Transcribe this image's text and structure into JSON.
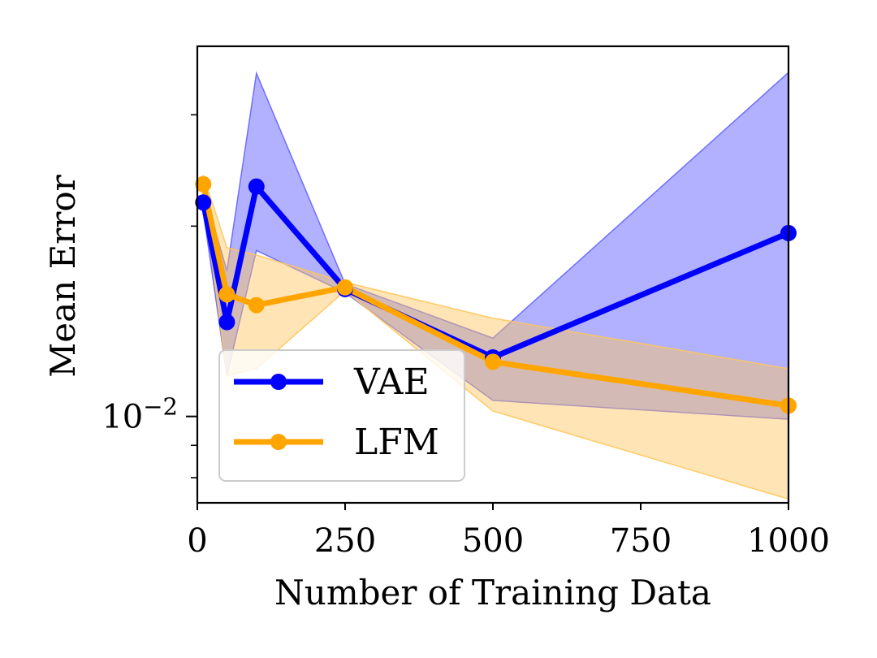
{
  "chart_data": {
    "type": "line",
    "title": "",
    "xlabel": "Number of Training Data",
    "ylabel": "Mean Error",
    "xlim": [
      0,
      1000
    ],
    "ylim": [
      0.0073,
      0.0385
    ],
    "yscale": "log",
    "x_ticks": [
      {
        "value": 0,
        "label": "0"
      },
      {
        "value": 250,
        "label": "250"
      },
      {
        "value": 500,
        "label": "500"
      },
      {
        "value": 750,
        "label": "750"
      },
      {
        "value": 1000,
        "label": "1000"
      }
    ],
    "y_major_tick": {
      "value": 0.01,
      "base": "10",
      "exponent": "−2"
    },
    "y_minor_ticks": [
      0.008,
      0.009,
      0.02,
      0.03
    ],
    "legend_position": "lower-left",
    "x": [
      10,
      50,
      100,
      250,
      500,
      1000
    ],
    "series": [
      {
        "name": "VAE",
        "color": "#0000ff",
        "band_color": "#6464ff",
        "values": [
          0.0218,
          0.0141,
          0.0231,
          0.0159,
          0.0124,
          0.0195
        ],
        "lower": [
          0.0211,
          0.0116,
          0.0183,
          0.0157,
          0.0106,
          0.0099
        ],
        "upper": [
          0.0229,
          0.017,
          0.0349,
          0.0162,
          0.0133,
          0.035
        ]
      },
      {
        "name": "LFM",
        "color": "#ffa500",
        "band_color": "#ffc55a",
        "values": [
          0.0233,
          0.0156,
          0.015,
          0.016,
          0.0122,
          0.0104
        ],
        "lower": [
          0.0227,
          0.0116,
          0.0119,
          0.0158,
          0.0102,
          0.0074
        ],
        "upper": [
          0.0241,
          0.0185,
          0.018,
          0.0163,
          0.0143,
          0.0119
        ]
      }
    ]
  }
}
